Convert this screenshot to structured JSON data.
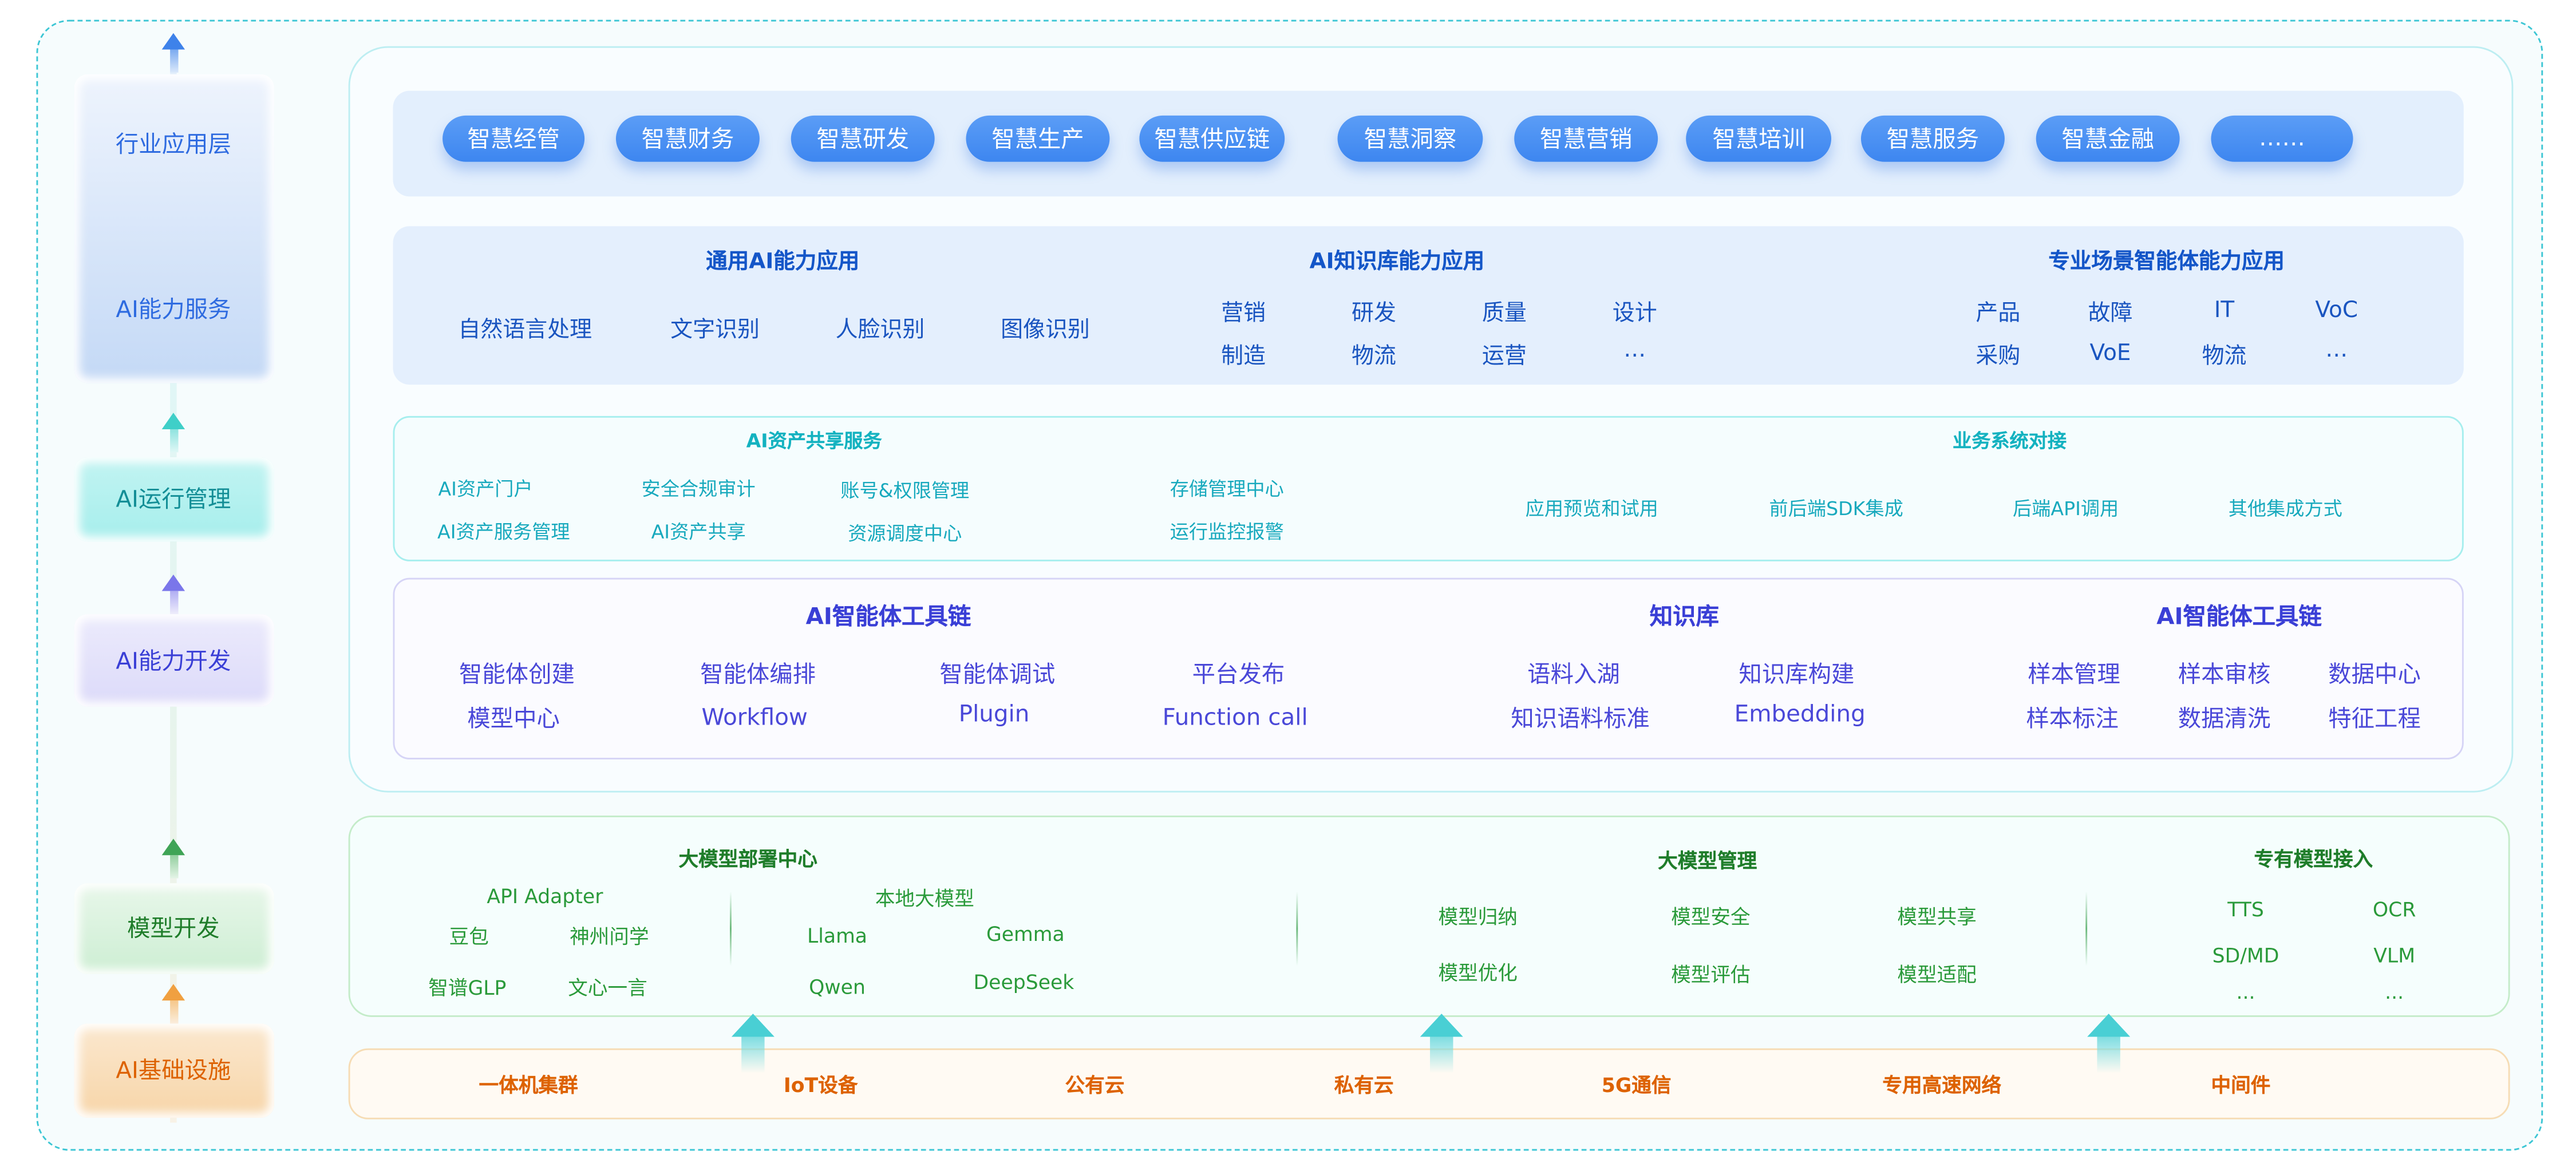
{
  "colors": {
    "border": "#3cc6d4",
    "app": "#3d86f0",
    "ops": "#14b2c0",
    "dev": "#3a3fd6",
    "model": "#2a9a3a",
    "infra": "#dd6200"
  },
  "layers": {
    "industry": "行业应用层",
    "ai_service": "AI能力服务",
    "ai_ops": "AI运行管理",
    "ai_dev": "AI能力开发",
    "model_dev": "模型开发",
    "infra": "AI基础设施"
  },
  "apps": [
    "智慧经管",
    "智慧财务",
    "智慧研发",
    "智慧生产",
    "智慧供应链",
    "智慧洞察",
    "智慧营销",
    "智慧培训",
    "智慧服务",
    "智慧金融",
    "……"
  ],
  "ai_capability": {
    "general": {
      "title": "通用AI能力应用",
      "items": [
        "自然语言处理",
        "文字识别",
        "人脸识别",
        "图像识别"
      ]
    },
    "knowledge": {
      "title": "AI知识库能力应用",
      "items": [
        "营销",
        "研发",
        "质量",
        "设计",
        "制造",
        "物流",
        "运营",
        "…"
      ]
    },
    "scenario": {
      "title": "专业场景智能体能力应用",
      "items": [
        "产品",
        "故障",
        "IT",
        "VoC",
        "采购",
        "VoE",
        "物流",
        "…"
      ]
    }
  },
  "ops": {
    "sharing": {
      "title": "AI资产共享服务",
      "items": [
        "AI资产门户",
        "安全合规审计",
        "账号&权限管理",
        "存储管理中心",
        "AI资产服务管理",
        "AI资产共享",
        "资源调度中心",
        "运行监控报警"
      ]
    },
    "integration": {
      "title": "业务系统对接",
      "items": [
        "应用预览和试用",
        "前后端SDK集成",
        "后端API调用",
        "其他集成方式"
      ]
    }
  },
  "dev": {
    "agent_tools": {
      "title": "AI智能体工具链",
      "items": [
        "智能体创建",
        "智能体编排",
        "智能体调试",
        "平台发布",
        "模型中心",
        "Workflow",
        "Plugin",
        "Function call"
      ]
    },
    "kb": {
      "title": "知识库",
      "items": [
        "语料入湖",
        "知识库构建",
        "知识语料标准",
        "Embedding"
      ]
    },
    "agent_tools2": {
      "title": "AI智能体工具链",
      "items": [
        "样本管理",
        "样本审核",
        "数据中心",
        "样本标注",
        "数据清洗",
        "特征工程"
      ]
    }
  },
  "model": {
    "deploy": {
      "title": "大模型部署中心",
      "api_adapter": "API Adapter",
      "api_items": [
        "豆包",
        "神州问学",
        "智谱GLP",
        "文心一言"
      ],
      "local": "本地大模型",
      "local_items": [
        "Llama",
        "Gemma",
        "Qwen",
        "DeepSeek"
      ]
    },
    "manage": {
      "title": "大模型管理",
      "items": [
        "模型归纳",
        "模型安全",
        "模型共享",
        "模型优化",
        "模型评估",
        "模型适配"
      ]
    },
    "proprietary": {
      "title": "专有模型接入",
      "items": [
        "TTS",
        "OCR",
        "SD/MD",
        "VLM",
        "...",
        "..."
      ]
    }
  },
  "infra": [
    "一体机集群",
    "IoT设备",
    "公有云",
    "私有云",
    "5G通信",
    "专用高速网络",
    "中间件"
  ]
}
